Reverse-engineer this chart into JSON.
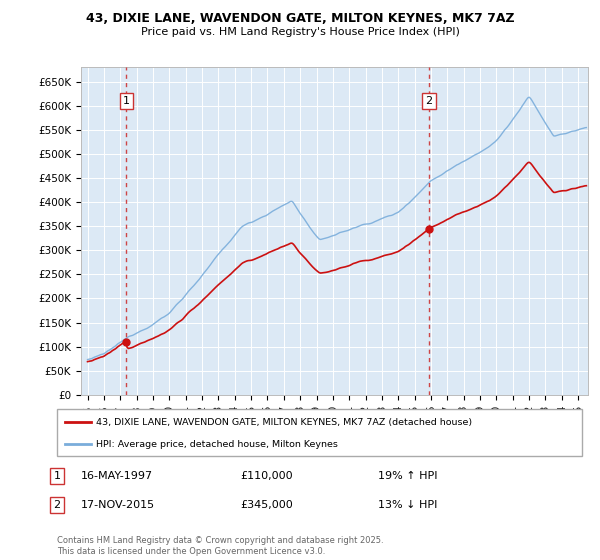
{
  "title1": "43, DIXIE LANE, WAVENDON GATE, MILTON KEYNES, MK7 7AZ",
  "title2": "Price paid vs. HM Land Registry's House Price Index (HPI)",
  "bg_color": "#dce9f5",
  "line_color_hpi": "#7aaddb",
  "line_color_price": "#cc1111",
  "marker_color": "#cc1111",
  "dashed_color": "#cc3333",
  "ylim": [
    0,
    680000
  ],
  "yticks": [
    0,
    50000,
    100000,
    150000,
    200000,
    250000,
    300000,
    350000,
    400000,
    450000,
    500000,
    550000,
    600000,
    650000
  ],
  "ytick_labels": [
    "£0",
    "£50K",
    "£100K",
    "£150K",
    "£200K",
    "£250K",
    "£300K",
    "£350K",
    "£400K",
    "£450K",
    "£500K",
    "£550K",
    "£600K",
    "£650K"
  ],
  "sale1_year": 1997.37,
  "sale1_price": 110000,
  "sale1_label": "1",
  "sale2_year": 2015.88,
  "sale2_price": 345000,
  "sale2_label": "2",
  "legend1_text": "43, DIXIE LANE, WAVENDON GATE, MILTON KEYNES, MK7 7AZ (detached house)",
  "legend2_text": "HPI: Average price, detached house, Milton Keynes",
  "ann1_date": "16-MAY-1997",
  "ann1_price": "£110,000",
  "ann1_hpi": "19% ↑ HPI",
  "ann2_date": "17-NOV-2015",
  "ann2_price": "£345,000",
  "ann2_hpi": "13% ↓ HPI",
  "footer": "Contains HM Land Registry data © Crown copyright and database right 2025.\nThis data is licensed under the Open Government Licence v3.0.",
  "xlim_start": 1994.6,
  "xlim_end": 2025.6
}
